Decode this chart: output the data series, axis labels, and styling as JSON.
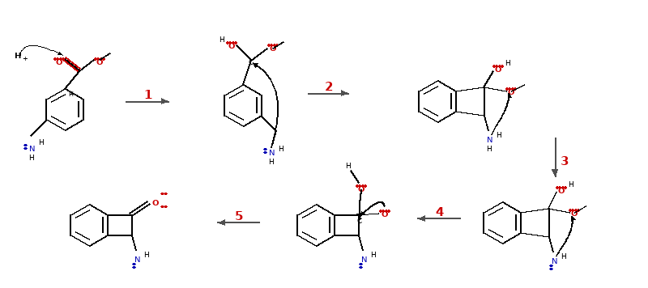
{
  "bg_color": "#ffffff",
  "figsize": [
    8.0,
    3.56
  ],
  "dpi": 100,
  "black": "#000000",
  "red": "#cc0000",
  "blue": "#0000cc",
  "gray": "#555555"
}
